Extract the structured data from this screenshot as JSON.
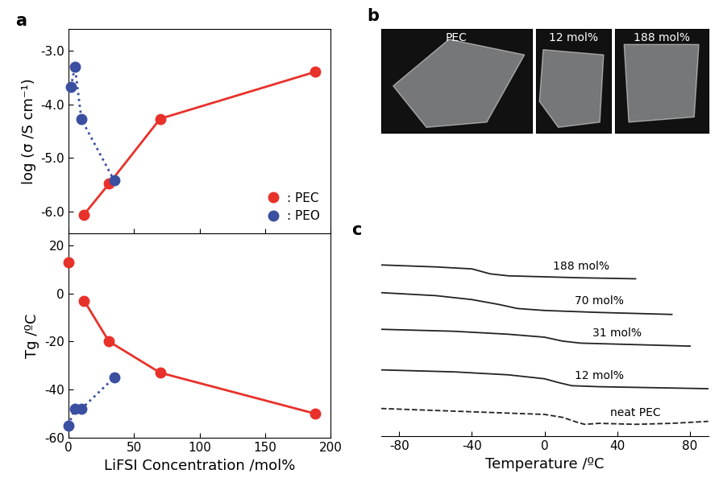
{
  "chart_data": [
    {
      "type": "line",
      "title": "a",
      "ylabel": "log (σ /S cm⁻¹)",
      "xlim": [
        0,
        200
      ],
      "xticks": [
        0,
        50,
        100,
        150,
        200
      ],
      "ylim": [
        -6.4,
        -2.6
      ],
      "yticks": [
        {
          "value": -6.0,
          "label": "-6.0"
        },
        {
          "value": -5.0,
          "label": "-5.0"
        },
        {
          "value": -4.0,
          "label": "-4.0"
        },
        {
          "value": -3.0,
          "label": "-3.0"
        }
      ],
      "tick_labels": "y",
      "legend": "lower right",
      "series": [
        {
          "name": ": PEC",
          "color": "#e8312a",
          "marker": "circle",
          "line_style": "solid",
          "x": [
            12,
            31,
            70,
            188
          ],
          "values": [
            -6.05,
            -5.48,
            -4.27,
            -3.4
          ]
        },
        {
          "name": ": PEO",
          "color": "#3a4fa0",
          "marker": "circle",
          "line_style": "dotted",
          "x": [
            2,
            5,
            10,
            35
          ],
          "values": [
            -3.68,
            -3.3,
            -4.28,
            -5.42
          ]
        }
      ]
    },
    {
      "type": "line",
      "ylabel": "Tg /ºC",
      "xlabel": "LiFSI Concentration /mol%",
      "xlim": [
        0,
        200
      ],
      "xticks": [
        0,
        50,
        100,
        150,
        200
      ],
      "ylim": [
        -60,
        25
      ],
      "yticks": [
        -60,
        -40,
        -20,
        0,
        20
      ],
      "series": [
        {
          "color": "#e8312a",
          "marker": "circle",
          "line_style": "none",
          "x": [
            0
          ],
          "values": [
            13
          ]
        },
        {
          "color": "#e8312a",
          "marker": "circle",
          "line_style": "solid",
          "x": [
            12,
            31,
            70,
            188
          ],
          "values": [
            -3,
            -20,
            -33,
            -50
          ]
        },
        {
          "color": "#3a4fa0",
          "marker": "circle",
          "line_style": "dotted",
          "x": [
            0,
            5,
            10,
            35
          ],
          "values": [
            -55,
            -48,
            -48,
            -35
          ]
        }
      ]
    },
    {
      "type": "line",
      "title": "c",
      "xlabel": "Temperature /ºC",
      "xlim": [
        -90,
        90
      ],
      "xticks": [
        -80,
        -40,
        0,
        40,
        80
      ],
      "ylim": [
        30,
        215
      ],
      "yticks": [],
      "tick_labels": "x",
      "series": [
        {
          "name": "188 mol%",
          "color": "#222222",
          "line_style": "solid",
          "x": [
            -90,
            -60,
            -40,
            -30,
            -20,
            0,
            20,
            50
          ],
          "values": [
            203,
            201,
            199,
            194,
            192,
            191,
            190,
            189
          ]
        },
        {
          "name": "70 mol%",
          "color": "#222222",
          "line_style": "solid",
          "x": [
            -90,
            -60,
            -40,
            -25,
            -15,
            0,
            30,
            70
          ],
          "values": [
            175,
            172,
            168,
            163,
            159,
            157,
            155,
            153
          ]
        },
        {
          "name": "31 mol%",
          "color": "#222222",
          "line_style": "solid",
          "x": [
            -90,
            -50,
            -20,
            0,
            10,
            20,
            40,
            80
          ],
          "values": [
            138,
            136,
            133,
            130,
            126,
            124,
            123,
            121
          ]
        },
        {
          "name": "12 mol%",
          "color": "#222222",
          "line_style": "solid",
          "x": [
            -90,
            -50,
            -20,
            0,
            8,
            15,
            30,
            60,
            90
          ],
          "values": [
            97,
            95,
            92,
            88,
            84,
            81,
            80,
            79,
            78
          ]
        },
        {
          "name": "neat PEC",
          "color": "#222222",
          "line_style": "dashed",
          "x": [
            -90,
            -60,
            -30,
            0,
            10,
            18,
            22,
            30,
            50,
            70,
            90
          ],
          "values": [
            58,
            56,
            54,
            52,
            49,
            44,
            42,
            43,
            42,
            43,
            45
          ]
        }
      ]
    }
  ],
  "photos": {
    "label": "b",
    "captions": [
      "PEC",
      "12 mol%",
      "188 mol%"
    ]
  }
}
